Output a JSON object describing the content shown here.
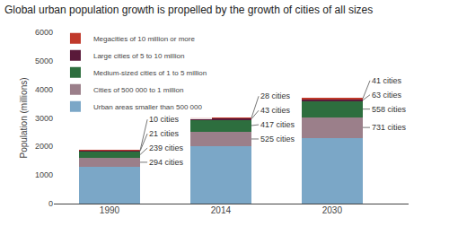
{
  "chart_data": {
    "type": "bar",
    "stacked": true,
    "title": "Global urban population growth is propelled by the growth of cities of all sizes",
    "categories": [
      "1990",
      "2014",
      "2030"
    ],
    "series": [
      {
        "name": "Urban areas smaller than 500 000",
        "color": "#7ba7c7",
        "values": [
          1300,
          2000,
          2300
        ],
        "data_labels": false
      },
      {
        "name": "Cities of 500 000 to 1 million",
        "color": "#9b7f8a",
        "values": [
          294,
          525,
          731
        ],
        "data_labels": true,
        "value_labels": [
          "294 cities",
          "525 cities",
          "731 cities"
        ]
      },
      {
        "name": "Medium-sized cities of 1 to 5 million",
        "color": "#2d6e3e",
        "values": [
          239,
          417,
          558
        ],
        "data_labels": true,
        "value_labels": [
          "239 cities",
          "417 cities",
          "558 cities"
        ]
      },
      {
        "name": "Large cities of 5 to 10 million",
        "color": "#5a1a3a",
        "values": [
          21,
          43,
          63
        ],
        "data_labels": true,
        "value_labels": [
          "21 cities",
          "43 cities",
          "63 cities"
        ]
      },
      {
        "name": "Megacities of 10 million or more",
        "color": "#c0392b",
        "values": [
          10,
          28,
          41
        ],
        "data_labels": true,
        "value_labels": [
          "10 cities",
          "28 cities",
          "41 cities"
        ]
      }
    ],
    "ylabel": "Population (millions)",
    "ylim": [
      0,
      6000
    ],
    "yticks": [
      0,
      1000,
      2000,
      3000,
      4000,
      5000,
      6000
    ],
    "grid": false,
    "legend": "upper left"
  }
}
